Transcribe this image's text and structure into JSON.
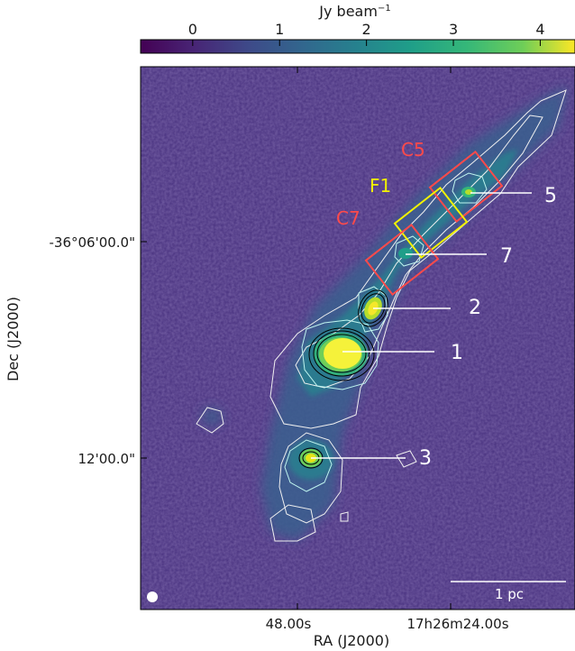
{
  "chart_data": {
    "type": "heatmap",
    "colorbar": {
      "label": "Jy beam",
      "label_exponent": "−1",
      "colormap": "viridis",
      "range": [
        -0.6,
        4.4
      ],
      "ticks": [
        {
          "value": 0,
          "label": "0"
        },
        {
          "value": 1,
          "label": "1"
        },
        {
          "value": 2,
          "label": "2"
        },
        {
          "value": 3,
          "label": "3"
        },
        {
          "value": 4,
          "label": "4"
        }
      ]
    },
    "xlabel": "RA (J2000)",
    "ylabel": "Dec (J2000)",
    "x_ticks": [
      "48.00s",
      "17h26m24.00s"
    ],
    "y_ticks": [
      "-36°06'00.0\"",
      "12'00.0\""
    ],
    "sources": [
      {
        "label": "1",
        "peak": 4.4
      },
      {
        "label": "2",
        "peak": 3.6
      },
      {
        "label": "3",
        "peak": 3.2
      },
      {
        "label": "5",
        "peak": 2.4
      },
      {
        "label": "7",
        "peak": 1.9
      }
    ],
    "boxes": [
      {
        "label": "C5",
        "color": "#ff4a4a"
      },
      {
        "label": "F1",
        "color": "#f2f200"
      },
      {
        "label": "C7",
        "color": "#ff4a4a"
      }
    ],
    "scalebar": {
      "label": "1 pc"
    },
    "beam": "white-filled-circle",
    "contour_colors": {
      "outer": "#f0f0f0",
      "inner": "#000000"
    }
  },
  "colors": {
    "red_box": "#ff4a4a",
    "yellow_box": "#f2f200",
    "background": "#4a2a7a"
  }
}
